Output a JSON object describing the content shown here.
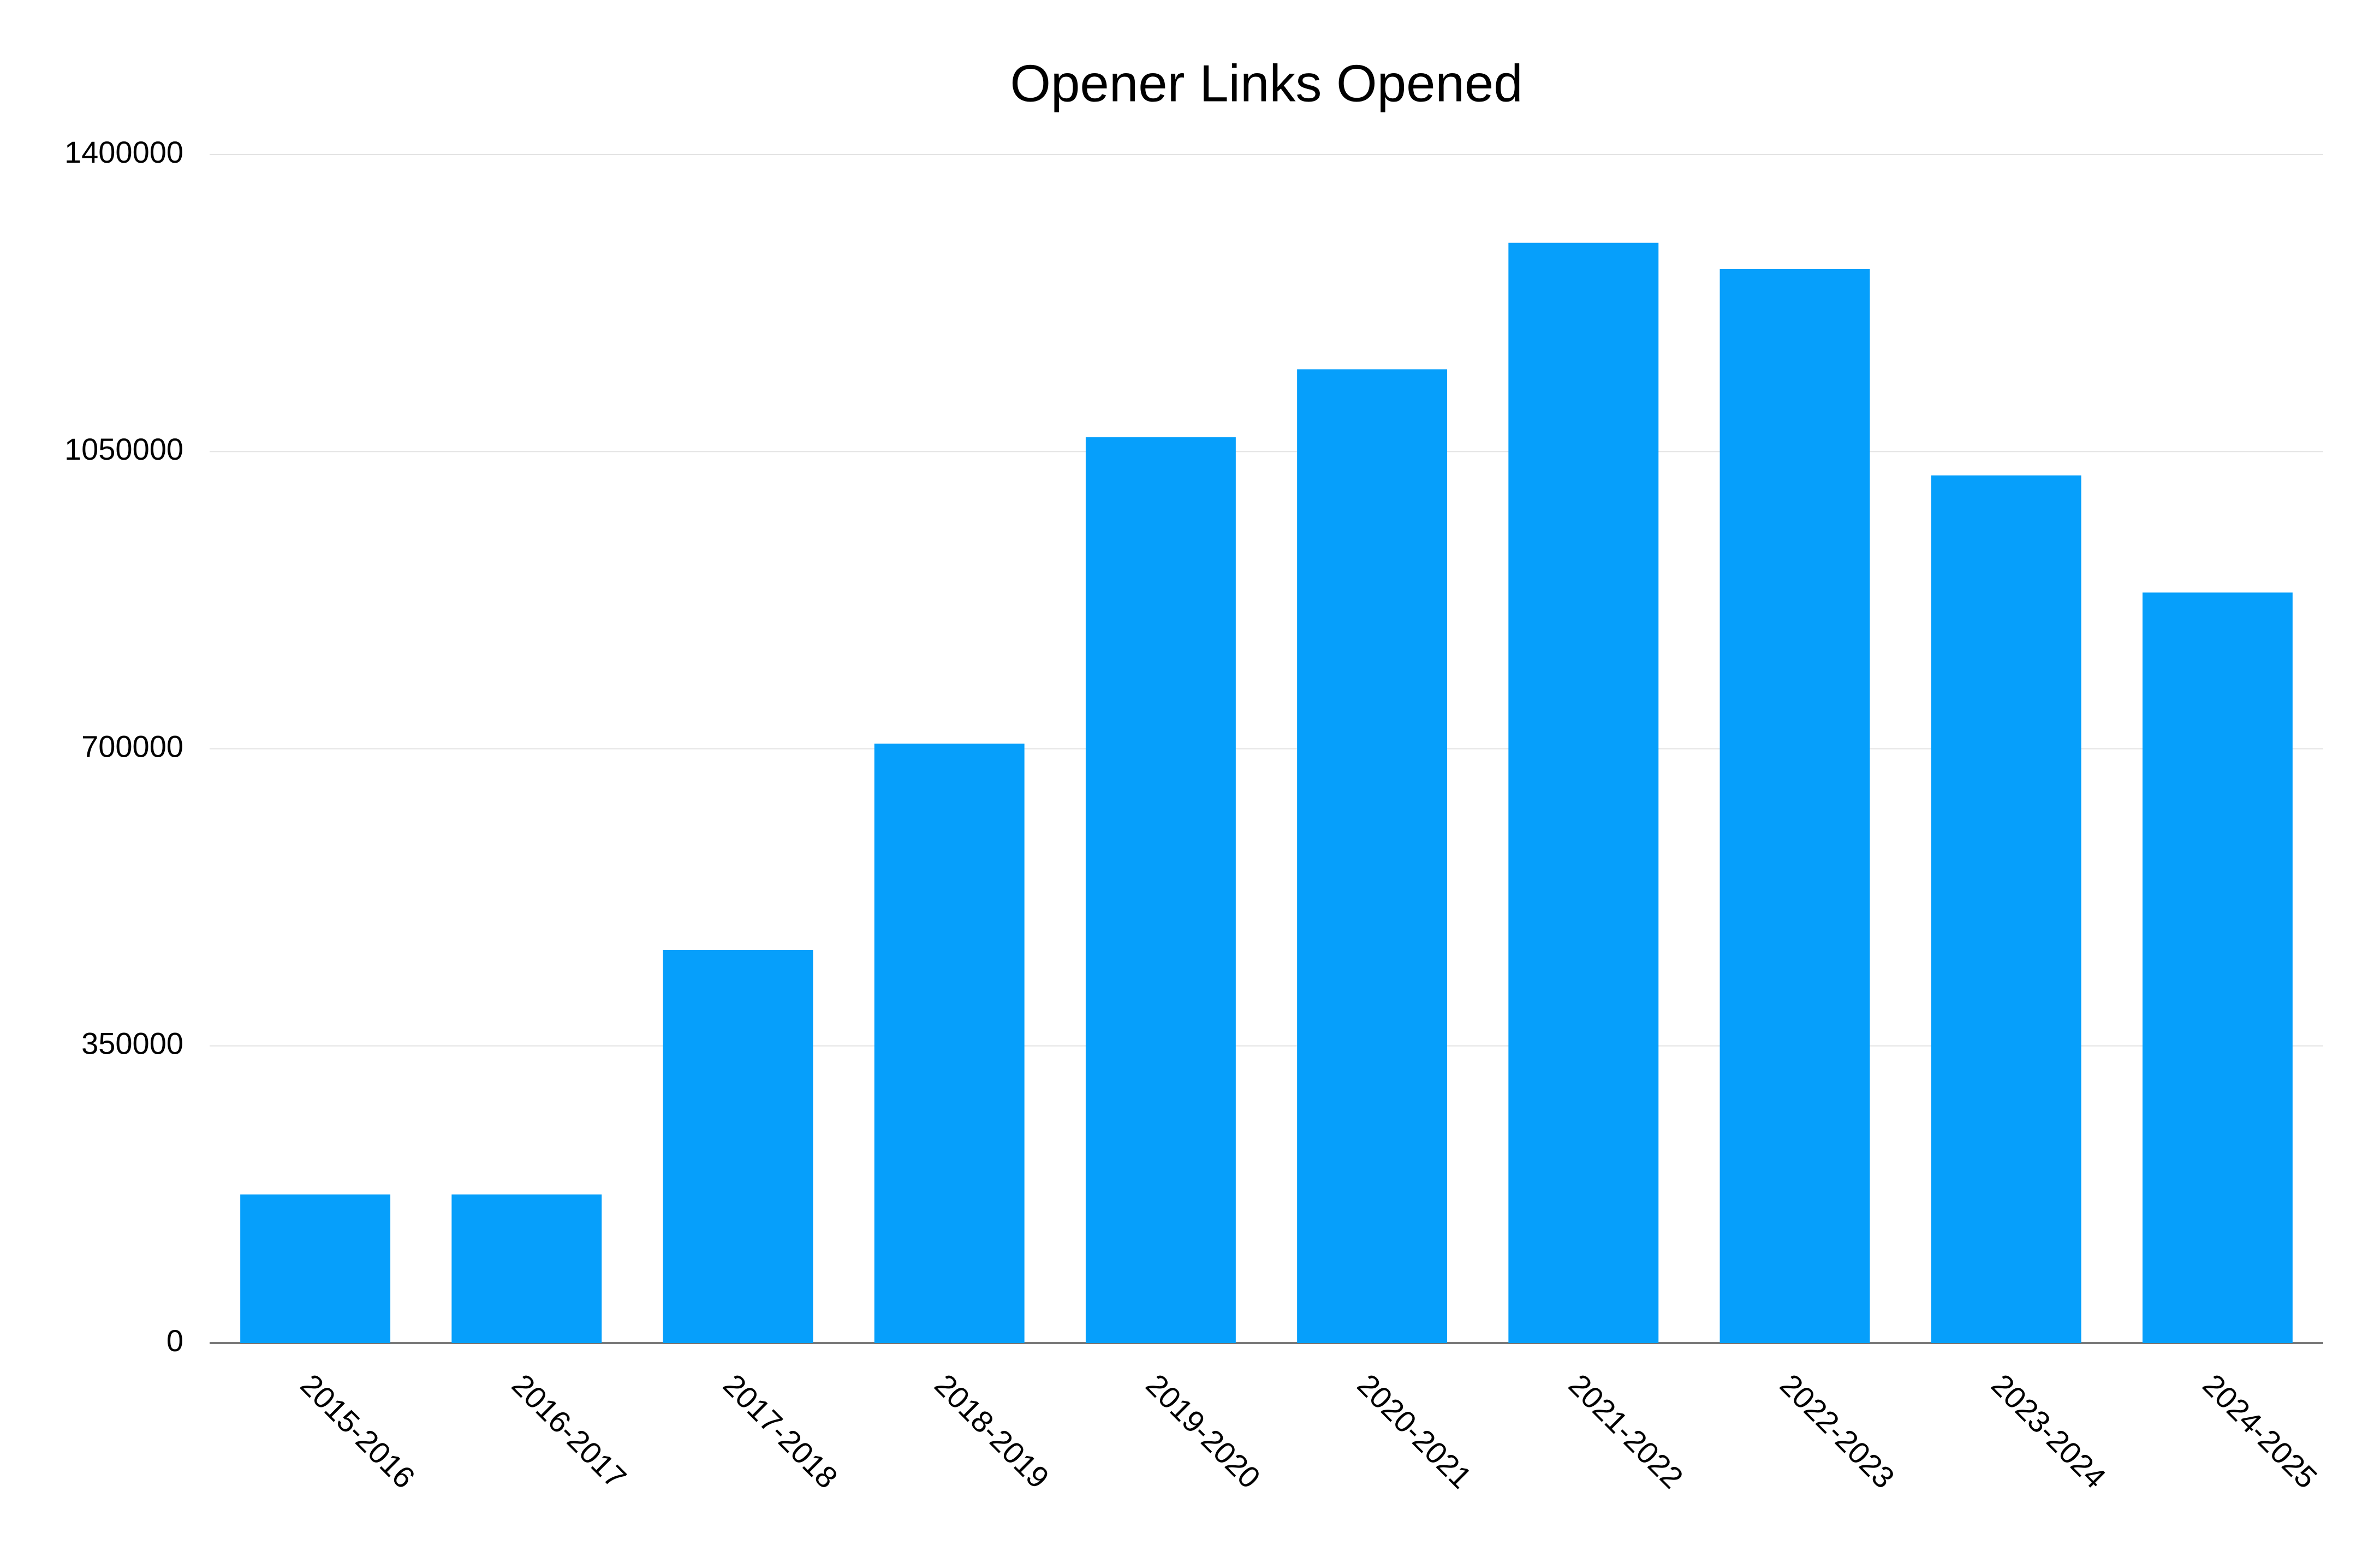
{
  "chart_data": {
    "type": "bar",
    "title": "Opener Links Opened",
    "categories": [
      "2015-2016",
      "2016-2017",
      "2017-2018",
      "2018-2019",
      "2019-2020",
      "2020-2021",
      "2021-2022",
      "2022-2023",
      "2023-2024",
      "2024-2025"
    ],
    "values": [
      175000,
      175000,
      463000,
      706000,
      1067000,
      1147000,
      1296000,
      1265000,
      1022000,
      884000
    ],
    "color": "#069ffb",
    "ylim": [
      0,
      1400000
    ],
    "yticks": [
      0,
      350000,
      700000,
      1050000,
      1400000
    ],
    "grid": true
  }
}
